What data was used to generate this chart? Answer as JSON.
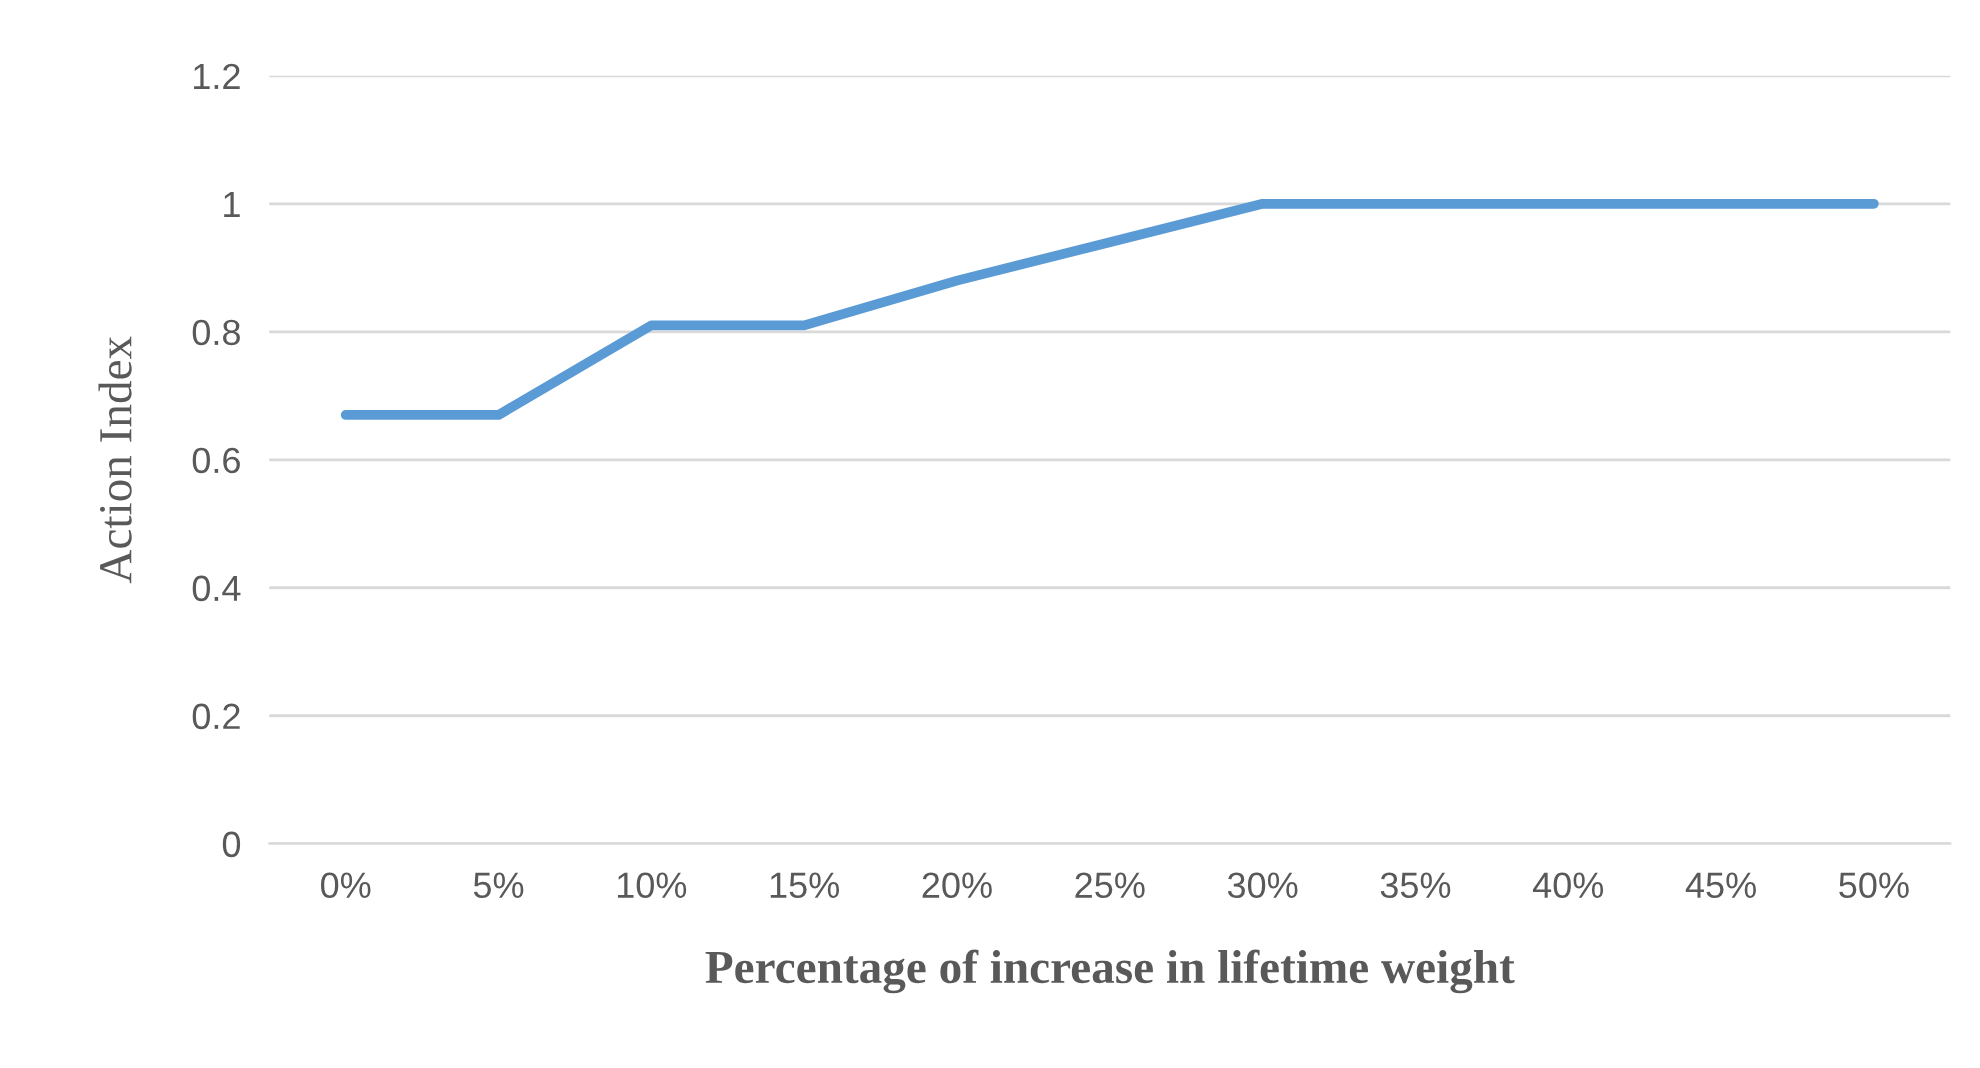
{
  "chart_data": {
    "type": "line",
    "xlabel": "Percentage of increase in lifetime weight",
    "ylabel": "Action Index",
    "categories": [
      "0%",
      "5%",
      "10%",
      "15%",
      "20%",
      "25%",
      "30%",
      "35%",
      "40%",
      "45%",
      "50%"
    ],
    "series": [
      {
        "color": "#5b9bd5",
        "values": [
          0.67,
          0.67,
          0.81,
          0.81,
          0.88,
          0.94,
          1,
          1,
          1,
          1,
          1
        ]
      }
    ],
    "ylim": [
      0,
      1.2
    ],
    "yticks": [
      0,
      0.2,
      0.4,
      0.6,
      0.8,
      1,
      1.2
    ],
    "grid": "y",
    "marker": "none",
    "line_style": "solid"
  }
}
